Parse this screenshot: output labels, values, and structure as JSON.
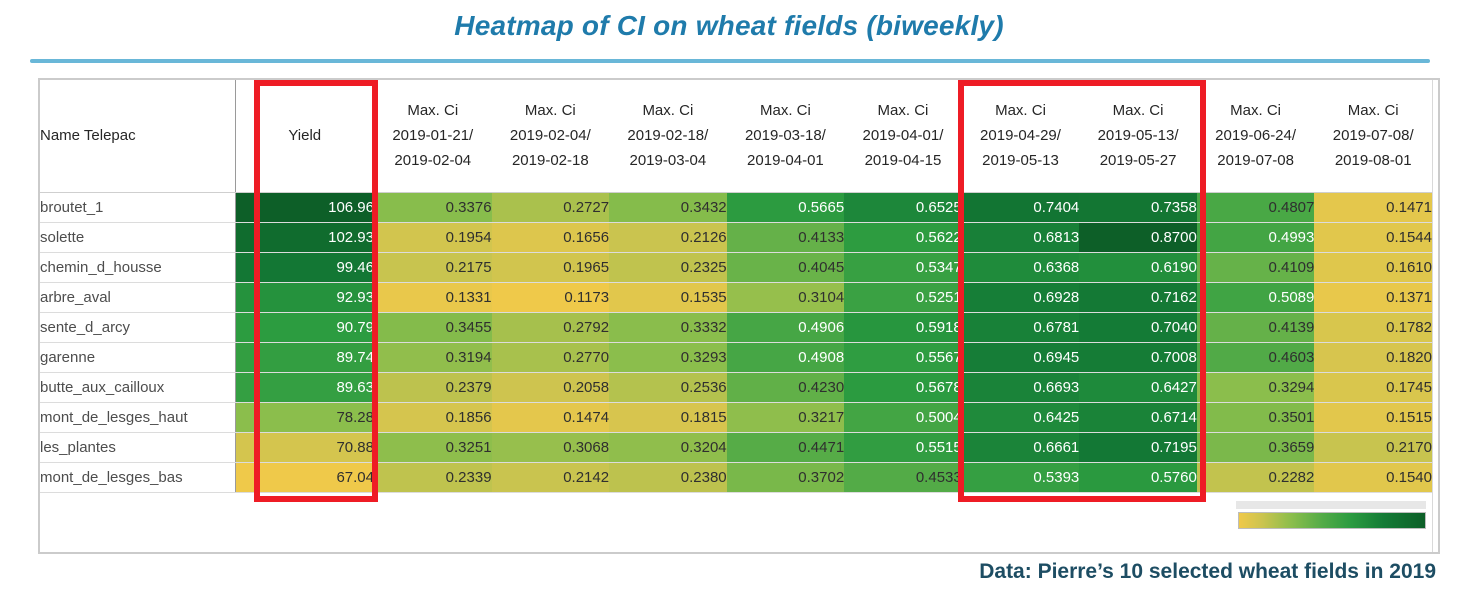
{
  "title": "Heatmap of CI on wheat fields (biweekly)",
  "footer": {
    "text": "Data: Pierre’s 10 selected wheat fields in 2019"
  },
  "colors": {
    "title": "#1f7bab",
    "underline": "#69b7d8",
    "footer": "#1d4d63",
    "highlight_box": "#ee1c25",
    "cell_text_dark": "#2f2f2f",
    "cell_text_light": "#ffffff",
    "scale_stops": [
      [
        "0.00",
        "#efc94a"
      ],
      [
        "0.12",
        "#cdc44f"
      ],
      [
        "0.28",
        "#8cbe4c"
      ],
      [
        "0.45",
        "#52ab47"
      ],
      [
        "0.60",
        "#2b9b40"
      ],
      [
        "0.78",
        "#147b36"
      ],
      [
        "1.00",
        "#0d5f28"
      ]
    ],
    "white_text_threshold": 0.49
  },
  "chart_data": {
    "type": "heatmap",
    "title": "Heatmap of CI on wheat fields (biweekly)",
    "row_header": "Name Telepac",
    "yield_header": "Yield",
    "metric_header": "Max. Ci",
    "periods": [
      {
        "from": "2019-01-21",
        "to": "2019-02-04"
      },
      {
        "from": "2019-02-04",
        "to": "2019-02-18"
      },
      {
        "from": "2019-02-18",
        "to": "2019-03-04"
      },
      {
        "from": "2019-03-18",
        "to": "2019-04-01"
      },
      {
        "from": "2019-04-01",
        "to": "2019-04-15"
      },
      {
        "from": "2019-04-29",
        "to": "2019-05-13"
      },
      {
        "from": "2019-05-13",
        "to": "2019-05-27"
      },
      {
        "from": "2019-06-24",
        "to": "2019-07-08"
      },
      {
        "from": "2019-07-08",
        "to": "2019-08-01"
      }
    ],
    "rows": [
      {
        "name": "broutet_1",
        "yield": "106.96",
        "ci": [
          "0.3376",
          "0.2727",
          "0.3432",
          "0.5665",
          "0.6525",
          "0.7404",
          "0.7358",
          "0.4807",
          "0.1471"
        ]
      },
      {
        "name": "solette",
        "yield": "102.93",
        "ci": [
          "0.1954",
          "0.1656",
          "0.2126",
          "0.4133",
          "0.5622",
          "0.6813",
          "0.8700",
          "0.4993",
          "0.1544"
        ]
      },
      {
        "name": "chemin_d_housse",
        "yield": "99.46",
        "ci": [
          "0.2175",
          "0.1965",
          "0.2325",
          "0.4045",
          "0.5347",
          "0.6368",
          "0.6190",
          "0.4109",
          "0.1610"
        ]
      },
      {
        "name": "arbre_aval",
        "yield": "92.93",
        "ci": [
          "0.1331",
          "0.1173",
          "0.1535",
          "0.3104",
          "0.5251",
          "0.6928",
          "0.7162",
          "0.5089",
          "0.1371"
        ]
      },
      {
        "name": "sente_d_arcy",
        "yield": "90.79",
        "ci": [
          "0.3455",
          "0.2792",
          "0.3332",
          "0.4906",
          "0.5918",
          "0.6781",
          "0.7040",
          "0.4139",
          "0.1782"
        ]
      },
      {
        "name": "garenne",
        "yield": "89.74",
        "ci": [
          "0.3194",
          "0.2770",
          "0.3293",
          "0.4908",
          "0.5567",
          "0.6945",
          "0.7008",
          "0.4603",
          "0.1820"
        ]
      },
      {
        "name": "butte_aux_cailloux",
        "yield": "89.63",
        "ci": [
          "0.2379",
          "0.2058",
          "0.2536",
          "0.4230",
          "0.5678",
          "0.6693",
          "0.6427",
          "0.3294",
          "0.1745"
        ]
      },
      {
        "name": "mont_de_lesges_haut",
        "yield": "78.28",
        "ci": [
          "0.1856",
          "0.1474",
          "0.1815",
          "0.3217",
          "0.5004",
          "0.6425",
          "0.6714",
          "0.3501",
          "0.1515"
        ]
      },
      {
        "name": "les_plantes",
        "yield": "70.88",
        "ci": [
          "0.3251",
          "0.3068",
          "0.3204",
          "0.4471",
          "0.5515",
          "0.6661",
          "0.7195",
          "0.3659",
          "0.2170"
        ]
      },
      {
        "name": "mont_de_lesges_bas",
        "yield": "67.04",
        "ci": [
          "0.2339",
          "0.2142",
          "0.2380",
          "0.3702",
          "0.4533",
          "0.5393",
          "0.5760",
          "0.2282",
          "0.1540"
        ]
      }
    ],
    "yield_domain": [
      67.04,
      106.96
    ],
    "ci_domain": [
      0.1173,
      0.87
    ],
    "highlighted_columns": [
      "Yield",
      "2019-04-29/2019-05-13",
      "2019-05-13/2019-05-27"
    ],
    "legend": {
      "type": "gradient",
      "from_color": "#efc94a",
      "to_color": "#0d5f28",
      "position": "bottom-right"
    },
    "footnote": "Data: Pierre’s 10 selected wheat fields in 2019"
  }
}
